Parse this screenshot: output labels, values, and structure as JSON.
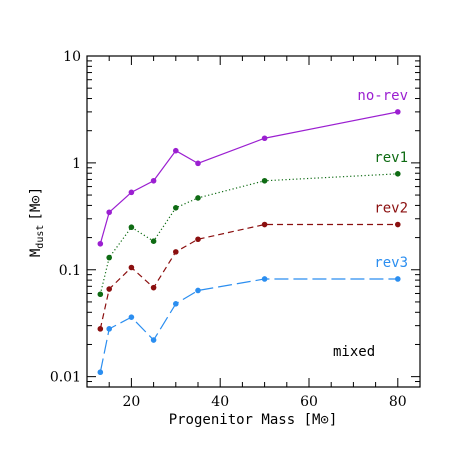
{
  "chart_data": {
    "type": "line",
    "xlabel": "Progenitor Mass [M⊙]",
    "ylabel": "M",
    "ylabel_sub": "dust",
    "ylabel_unit": "[M⊙]",
    "xlim": [
      10,
      85
    ],
    "ylim": [
      0.008,
      10
    ],
    "yscale": "log",
    "x_ticks": [
      20,
      40,
      60,
      80
    ],
    "x_tick_labels": [
      "20",
      "40",
      "60",
      "80"
    ],
    "y_ticks": [
      0.01,
      0.1,
      1,
      10
    ],
    "y_tick_labels": [
      "0.01",
      "0.1",
      "1",
      "10"
    ],
    "grid": false,
    "annotation": "mixed",
    "x": [
      13,
      15,
      20,
      25,
      30,
      35,
      50,
      80
    ],
    "series": [
      {
        "name": "no-rev",
        "color": "#9b1fd1",
        "dash": "solid",
        "values": [
          0.175,
          0.345,
          0.53,
          0.68,
          1.3,
          0.99,
          1.7,
          3.0
        ]
      },
      {
        "name": "rev1",
        "color": "#0e6b13",
        "dash": "dotted",
        "values": [
          0.059,
          0.13,
          0.25,
          0.185,
          0.38,
          0.47,
          0.68,
          0.79
        ]
      },
      {
        "name": "rev2",
        "color": "#8b0f0f",
        "dash": "dashed",
        "values": [
          0.028,
          0.066,
          0.105,
          0.068,
          0.147,
          0.193,
          0.265,
          0.265
        ]
      },
      {
        "name": "rev3",
        "color": "#2b8ef0",
        "dash": "longdash",
        "values": [
          0.011,
          0.028,
          0.036,
          0.022,
          0.048,
          0.064,
          0.082,
          0.082
        ]
      }
    ]
  }
}
